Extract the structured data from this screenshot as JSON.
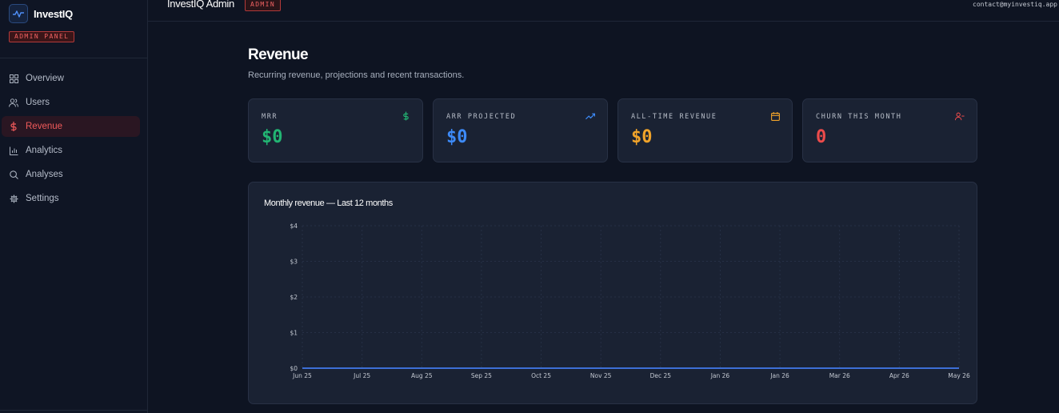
{
  "brand": {
    "name": "InvestIQ",
    "badge": "ADMIN PANEL"
  },
  "sidebar": {
    "items": [
      {
        "label": "Overview",
        "icon": "grid-icon",
        "active": false
      },
      {
        "label": "Users",
        "icon": "users-icon",
        "active": false
      },
      {
        "label": "Revenue",
        "icon": "dollar-icon",
        "active": true
      },
      {
        "label": "Analytics",
        "icon": "bar-chart-icon",
        "active": false
      },
      {
        "label": "Analyses",
        "icon": "search-icon",
        "active": false
      },
      {
        "label": "Settings",
        "icon": "gear-icon",
        "active": false
      }
    ]
  },
  "header": {
    "title": "InvestIQ Admin",
    "badge": "ADMIN",
    "contact": "contact@myinvestiq.app"
  },
  "page": {
    "title": "Revenue",
    "subtitle": "Recurring revenue, projections and recent transactions."
  },
  "stats": [
    {
      "label": "MRR",
      "value": "$0",
      "color": "#22b573",
      "icon": "dollar-icon"
    },
    {
      "label": "ARR PROJECTED",
      "value": "$0",
      "color": "#3d8af7",
      "icon": "trending-up-icon"
    },
    {
      "label": "ALL-TIME REVENUE",
      "value": "$0",
      "color": "#f0a32a",
      "icon": "calendar-icon"
    },
    {
      "label": "CHURN THIS MONTH",
      "value": "0",
      "color": "#ec4b4b",
      "icon": "user-minus-icon"
    }
  ],
  "colors": {
    "accent": "#f05a5a",
    "line": "#3d6fd6"
  },
  "chart_data": {
    "type": "line",
    "title": "Monthly revenue — Last 12 months",
    "categories": [
      "Jun 25",
      "Jul 25",
      "Aug 25",
      "Sep 25",
      "Oct 25",
      "Nov 25",
      "Dec 25",
      "Jan 26",
      "Jan 26",
      "Mar 26",
      "Apr 26",
      "May 26"
    ],
    "values": [
      0,
      0,
      0,
      0,
      0,
      0,
      0,
      0,
      0,
      0,
      0,
      0
    ],
    "yticks": [
      "$0",
      "$1",
      "$2",
      "$3",
      "$4"
    ],
    "ylim": [
      0,
      4
    ],
    "grid": true
  }
}
